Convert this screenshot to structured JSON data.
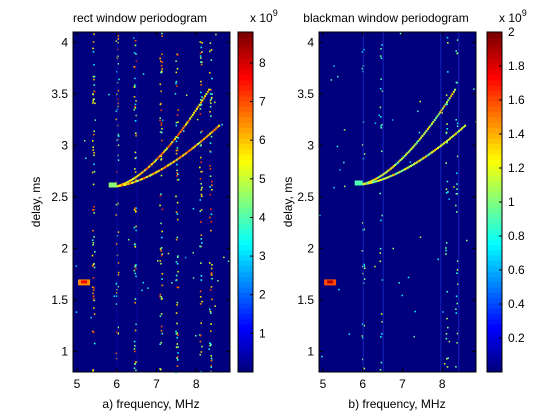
{
  "chart_data": [
    {
      "type": "heatmap",
      "title": "rect window periodogram",
      "xlabel": "a) frequency, MHz",
      "ylabel": "delay, ms",
      "xlim": [
        4.9,
        8.85
      ],
      "ylim": [
        0.8,
        4.1
      ],
      "xticks": [
        "5",
        "6",
        "7",
        "8"
      ],
      "yticks": [
        "1",
        "1.5",
        "2",
        "2.5",
        "3",
        "3.5",
        "4"
      ],
      "colorbar": {
        "exponent_label": "x 10",
        "exponent": "9",
        "range": [
          0,
          8.8
        ],
        "ticks": [
          "1",
          "2",
          "3",
          "4",
          "5",
          "6",
          "7",
          "8"
        ]
      },
      "features": {
        "hot_spot": {
          "x": 5.18,
          "y": 1.67,
          "value": 6.5
        },
        "echo_start": {
          "x": 5.9,
          "y": 2.61,
          "value": 4.5
        },
        "vertical_lines_x": [
          5.4,
          6.0,
          6.45,
          7.1,
          7.5,
          8.1,
          8.35
        ],
        "curve_description": "bright dotted curves rising from (5.9, 2.6) to (8.4, 3.5)"
      }
    },
    {
      "type": "heatmap",
      "title": "blackman window periodogram",
      "xlabel": "b) frequency, MHz",
      "ylabel": "delay, ms",
      "xlim": [
        4.9,
        8.85
      ],
      "ylim": [
        0.8,
        4.1
      ],
      "xticks": [
        "5",
        "6",
        "7",
        "8"
      ],
      "yticks": [
        "1",
        "1.5",
        "2",
        "2.5",
        "3",
        "3.5",
        "4"
      ],
      "colorbar": {
        "exponent_label": "x 10",
        "exponent": "9",
        "range": [
          0,
          2.0
        ],
        "ticks": [
          "0.2",
          "0.4",
          "0.6",
          "0.8",
          "1",
          "1.2",
          "1.4",
          "1.6",
          "1.8",
          "2"
        ]
      },
      "features": {
        "hot_spot": {
          "x": 5.18,
          "y": 1.67,
          "value": 1.6
        },
        "echo_start": {
          "x": 5.9,
          "y": 2.63,
          "value": 0.9
        },
        "vertical_lines_x": [
          6.0,
          6.45,
          8.1,
          8.35
        ],
        "curve_description": "fainter dotted curves rising from (5.9, 2.6) to (8.4, 3.4)"
      }
    }
  ]
}
